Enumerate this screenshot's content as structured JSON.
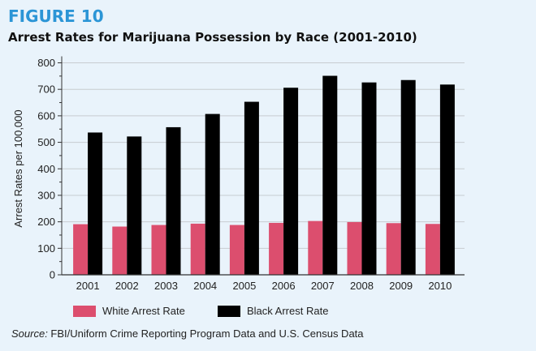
{
  "figure_label": "FIGURE 10",
  "source_label": "Source:",
  "source_text": " FBI/Uniform Crime Reporting Program Data and U.S. Census Data",
  "chart_data": {
    "type": "bar",
    "title": "Arrest Rates for Marijuana Possession by Race (2001-2010)",
    "ylabel": "Arrest Rates per 100,000",
    "xlabel": "",
    "ylim": [
      0,
      800
    ],
    "yticks": [
      0,
      100,
      200,
      300,
      400,
      500,
      600,
      700,
      800
    ],
    "grid": true,
    "legend_placement": "bottom",
    "categories": [
      "2001",
      "2002",
      "2003",
      "2004",
      "2005",
      "2006",
      "2007",
      "2008",
      "2009",
      "2010"
    ],
    "series": [
      {
        "name": "White Arrest Rate",
        "color": "#dc4e6e",
        "values": [
          191,
          182,
          188,
          193,
          188,
          196,
          203,
          199,
          195,
          192
        ]
      },
      {
        "name": "Black Arrest Rate",
        "color": "#000000",
        "values": [
          537,
          522,
          557,
          607,
          653,
          706,
          751,
          726,
          735,
          718
        ]
      }
    ]
  }
}
